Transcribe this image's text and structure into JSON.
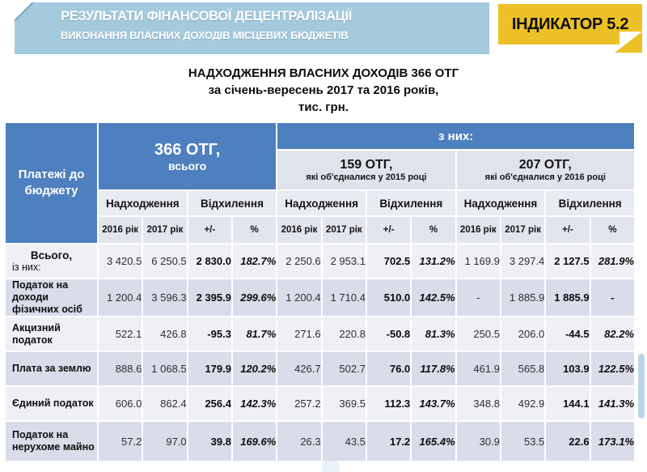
{
  "header": {
    "title_line1": "РЕЗУЛЬТАТИ ФІНАНСОВОЇ ДЕЦЕНТРАЛІЗАЦІЇ",
    "title_line2": "ВИКОНАННЯ ВЛАСНИХ ДОХОДІВ МІСЦЕВИХ БЮДЖЕТІВ",
    "indicator_label": "ІНДИКАТОР 5.2",
    "colors": {
      "band": "#a4cade",
      "indicator_bg": "#ecc127",
      "table_header": "#4e7fbe"
    }
  },
  "subtitle": {
    "line1": "НАДХОДЖЕННЯ ВЛАСНИХ ДОХОДІВ 366 ОТГ",
    "line2": "за січень-вересень 2017 та 2016 років,",
    "line3": "тис. грн."
  },
  "table": {
    "row_header_line1": "Платежі до",
    "row_header_line2": "бюджету",
    "group_total_line1": "366 ОТГ,",
    "group_total_line2": "всього",
    "group_of_them": "з них:",
    "subgroup_2015_line1": "159 ОТГ,",
    "subgroup_2015_line2": "які об'єдналися у 2015 році",
    "subgroup_2016_line1": "207 ОТГ,",
    "subgroup_2016_line2": "які об'єдналися у 2016 році",
    "col_inflow": "Надходження",
    "col_deviation": "Відхилення",
    "year_cols": {
      "y2016": "2016 рік",
      "y2017": "2017 рік",
      "delta": "+/-",
      "pct": "%"
    },
    "rows": [
      {
        "label_bold": "Всього,",
        "label_normal": "із них:",
        "values": [
          "3 420.5",
          "6 250.5",
          "2 830.0",
          "182.7%",
          "2 250.6",
          "2 953.1",
          "702.5",
          "131.2%",
          "1 169.9",
          "3 297.4",
          "2 127.5",
          "281.9%"
        ]
      },
      {
        "label_bold": "Податок на доходи фізичних осіб",
        "values": [
          "1 200.4",
          "3 596.3",
          "2 395.9",
          "299.6%",
          "1 200.4",
          "1 710.4",
          "510.0",
          "142.5%",
          "-",
          "1 885.9",
          "1 885.9",
          "-"
        ]
      },
      {
        "label_bold": "Акцизний податок",
        "values": [
          "522.1",
          "426.8",
          "-95.3",
          "81.7%",
          "271.6",
          "220.8",
          "-50.8",
          "81.3%",
          "250.5",
          "206.0",
          "-44.5",
          "82.2%"
        ]
      },
      {
        "label_bold": "Плата за землю",
        "values": [
          "888.6",
          "1 068.5",
          "179.9",
          "120.2%",
          "426.7",
          "502.7",
          "76.0",
          "117.8%",
          "461.9",
          "565.8",
          "103.9",
          "122.5%"
        ]
      },
      {
        "label_bold": "Єдиний податок",
        "values": [
          "606.0",
          "862.4",
          "256.4",
          "142.3%",
          "257.2",
          "369.5",
          "112.3",
          "143.7%",
          "348.8",
          "492.9",
          "144.1",
          "141.3%"
        ]
      },
      {
        "label_bold": "Податок на нерухоме майно",
        "values": [
          "57.2",
          "97.0",
          "39.8",
          "169.6%",
          "26.3",
          "43.5",
          "17.2",
          "165.4%",
          "30.9",
          "53.5",
          "22.6",
          "173.1%"
        ]
      }
    ]
  }
}
